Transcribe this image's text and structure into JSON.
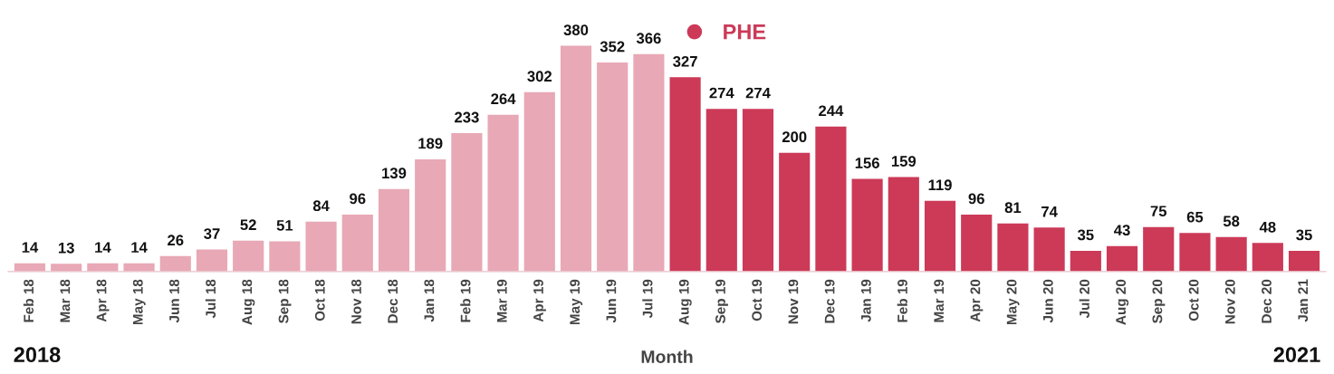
{
  "chart_data": {
    "type": "bar",
    "xlabel": "Month",
    "stacked": true,
    "data_labels": true,
    "legend": "top",
    "grid": false,
    "categories": [
      "Feb 18",
      "Mar 18",
      "Apr 18",
      "May 18",
      "Jun 18",
      "Jul 18",
      "Aug 18",
      "Sep 18",
      "Oct 18",
      "Nov 18",
      "Dec 18",
      "Jan 18",
      "Feb 19",
      "Mar 19",
      "Apr 19",
      "May 19",
      "Jun 19",
      "Jul 19",
      "Aug 19",
      "Sep 19",
      "Oct 19",
      "Nov 19",
      "Dec 19",
      "Jan 19",
      "Feb 19",
      "Mar 19",
      "Apr 20",
      "May 20",
      "Jun 20",
      "Jul 20",
      "Aug 20",
      "Sep 20",
      "Oct 20",
      "Nov 20",
      "Dec 20",
      "Jan 21"
    ],
    "series": [
      {
        "color": "#e8a8b5",
        "values": [
          14,
          13,
          14,
          14,
          26,
          37,
          52,
          51,
          84,
          96,
          139,
          189,
          233,
          264,
          302,
          380,
          352,
          366,
          null,
          null,
          null,
          null,
          null,
          null,
          null,
          null,
          null,
          null,
          null,
          null,
          null,
          null,
          null,
          null,
          null,
          null
        ]
      },
      {
        "name": "PHE",
        "color": "#cc3a58",
        "values": [
          null,
          null,
          null,
          null,
          null,
          null,
          null,
          null,
          null,
          null,
          null,
          null,
          null,
          null,
          null,
          null,
          null,
          null,
          327,
          274,
          274,
          200,
          244,
          156,
          159,
          119,
          96,
          81,
          74,
          35,
          43,
          75,
          65,
          58,
          48,
          35
        ]
      }
    ],
    "annotations": [
      "2018",
      "2021"
    ]
  }
}
